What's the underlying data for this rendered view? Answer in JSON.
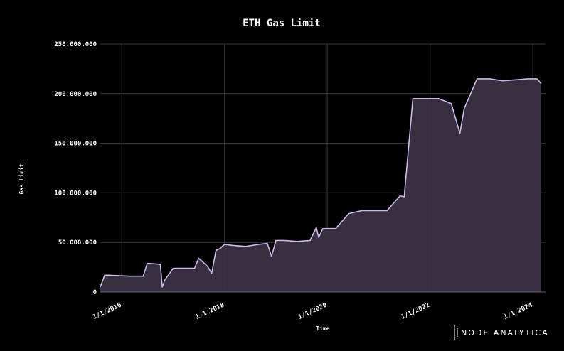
{
  "chart_data": {
    "type": "area",
    "title": "ETH Gas Limit",
    "xlabel": "Time",
    "ylabel": "Gas Limit",
    "x_range": [
      "2015-08-01",
      "2024-04-01"
    ],
    "ylim": [
      0,
      250000000
    ],
    "y_ticks": [
      0,
      50000000,
      100000000,
      150000000,
      200000000,
      250000000
    ],
    "y_tick_labels": [
      "0",
      "50.000.000",
      "100.000.000",
      "150.000.000",
      "200.000.000",
      "250.000.000"
    ],
    "x_ticks": [
      "2016-01-01",
      "2018-01-01",
      "2020-01-01",
      "2022-01-01",
      "2024-01-01"
    ],
    "x_tick_labels": [
      "1/1/2016",
      "1/1/2018",
      "1/1/2020",
      "1/1/2022",
      "1/1/2024"
    ],
    "grid": true,
    "colors": {
      "line": "#c9bde6",
      "fill": "#3a3242",
      "background": "#000000",
      "grid": "#3a3a3a"
    },
    "series": [
      {
        "x": [
          "2015-08-01",
          "2015-09-01",
          "2015-10-01",
          "2016-03-01",
          "2016-06-01",
          "2016-07-01",
          "2016-10-01",
          "2016-10-15",
          "2016-11-01",
          "2017-01-01",
          "2017-03-01",
          "2017-06-01",
          "2017-07-01",
          "2017-09-01",
          "2017-10-01",
          "2017-11-01",
          "2017-12-01",
          "2017-12-15",
          "2018-01-01",
          "2018-03-01",
          "2018-06-01",
          "2018-09-01",
          "2018-11-01",
          "2018-12-01",
          "2019-01-01",
          "2019-03-01",
          "2019-06-01",
          "2019-09-01",
          "2019-10-15",
          "2019-11-01",
          "2019-12-01",
          "2020-01-01",
          "2020-03-01",
          "2020-06-01",
          "2020-09-01",
          "2020-12-01",
          "2021-03-01",
          "2021-06-01",
          "2021-07-01",
          "2021-09-01",
          "2021-12-01",
          "2022-03-01",
          "2022-06-01",
          "2022-08-01",
          "2022-09-01",
          "2022-12-01",
          "2023-03-01",
          "2023-06-01",
          "2023-09-01",
          "2023-12-01",
          "2024-02-01",
          "2024-03-01"
        ],
        "values": [
          5000000,
          17000000,
          17000000,
          16000000,
          16000000,
          29000000,
          28000000,
          5000000,
          12000000,
          24000000,
          24000000,
          24000000,
          34000000,
          26000000,
          19000000,
          42000000,
          44000000,
          46000000,
          48000000,
          47000000,
          46000000,
          48000000,
          49000000,
          36000000,
          52000000,
          52000000,
          51000000,
          52000000,
          65000000,
          55000000,
          64000000,
          64000000,
          64000000,
          79000000,
          82000000,
          82000000,
          82000000,
          97000000,
          96000000,
          195000000,
          195000000,
          195000000,
          190000000,
          160000000,
          185000000,
          215000000,
          215000000,
          213000000,
          214000000,
          215000000,
          215000000,
          210000000
        ]
      }
    ]
  },
  "brand": {
    "name": "NODE ANALYTICA"
  }
}
